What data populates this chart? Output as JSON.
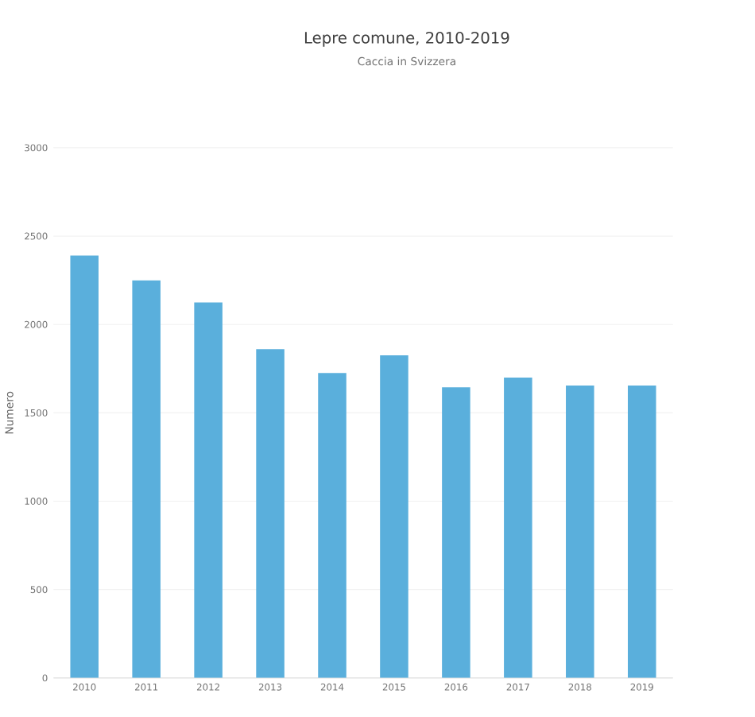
{
  "chart_data": {
    "type": "bar",
    "title": "Lepre comune, 2010-2019",
    "subtitle": "Caccia in Svizzera",
    "ylabel": "Numero",
    "categories": [
      "2010",
      "2011",
      "2012",
      "2013",
      "2014",
      "2015",
      "2016",
      "2017",
      "2018",
      "2019"
    ],
    "values": [
      2390,
      2250,
      2125,
      1860,
      1725,
      1825,
      1645,
      1700,
      1655,
      1655
    ],
    "color": "#5aafdc",
    "ylim": [
      0,
      3000
    ],
    "yticks": [
      0,
      500,
      1000,
      1500,
      2000,
      2500,
      3000
    ],
    "grid": "y"
  }
}
